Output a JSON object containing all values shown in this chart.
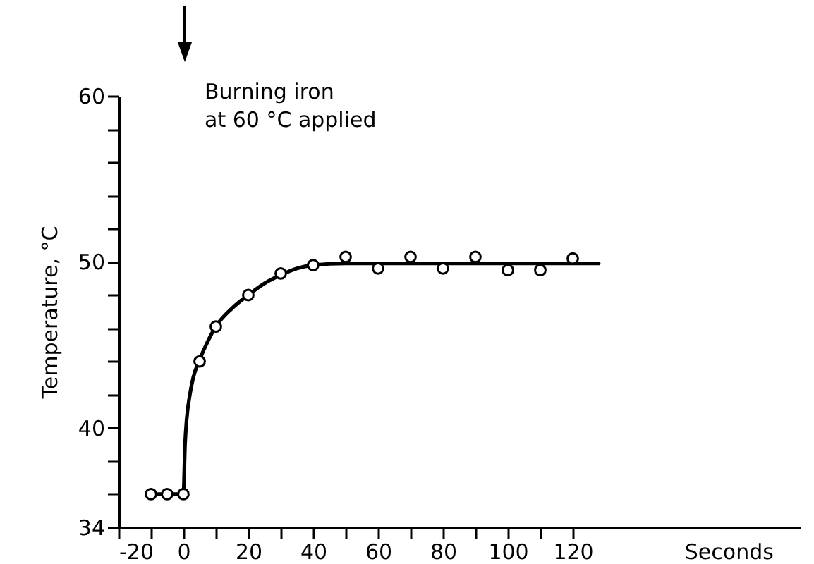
{
  "chart_data": {
    "type": "scatter",
    "xlabel": "Seconds",
    "ylabel": "Temperature, °C",
    "annotations": [
      "Burning iron at 60 °C applied"
    ],
    "xlim": [
      -20,
      190
    ],
    "ylim": [
      34,
      60
    ],
    "xticks": [
      -20,
      {
        "value": -10,
        "label": null
      },
      0,
      {
        "value": 10,
        "label": null
      },
      20,
      {
        "value": 30,
        "label": null
      },
      40,
      {
        "value": 50,
        "label": null
      },
      60,
      {
        "value": 70,
        "label": null
      },
      80,
      {
        "value": 90,
        "label": null
      },
      100,
      {
        "value": 110,
        "label": null
      },
      120
    ],
    "yticks": [
      34,
      {
        "value": 36,
        "label": null
      },
      {
        "value": 38,
        "label": null
      },
      40,
      {
        "value": 42,
        "label": null
      },
      {
        "value": 44,
        "label": null
      },
      {
        "value": 46,
        "label": null
      },
      {
        "value": 48,
        "label": null
      },
      50,
      {
        "value": 52,
        "label": null
      },
      {
        "value": 54,
        "label": null
      },
      {
        "value": 56,
        "label": null
      },
      {
        "value": 58,
        "label": null
      },
      60
    ],
    "series": [
      {
        "type": "line",
        "marker": "none",
        "color": "#000000",
        "x": [
          -10,
          0,
          0.5,
          1,
          2,
          3,
          5,
          7.5,
          10,
          15,
          20,
          25,
          30,
          35,
          40,
          50,
          128
        ],
        "values": [
          36,
          36,
          39,
          40.5,
          42,
          43,
          44.1,
          45.2,
          46.1,
          47.2,
          48,
          48.7,
          49.2,
          49.6,
          49.8,
          49.9,
          49.9
        ]
      },
      {
        "marker": "circle",
        "color": "#000000",
        "x": [
          -10,
          -5,
          0,
          5,
          10,
          20,
          30,
          40,
          50,
          60,
          70,
          80,
          90,
          100,
          110,
          120
        ],
        "values": [
          36,
          36,
          36,
          44,
          46.1,
          48,
          49.3,
          49.8,
          50.3,
          49.6,
          50.3,
          49.6,
          50.3,
          49.5,
          49.5,
          50.2
        ]
      }
    ]
  }
}
